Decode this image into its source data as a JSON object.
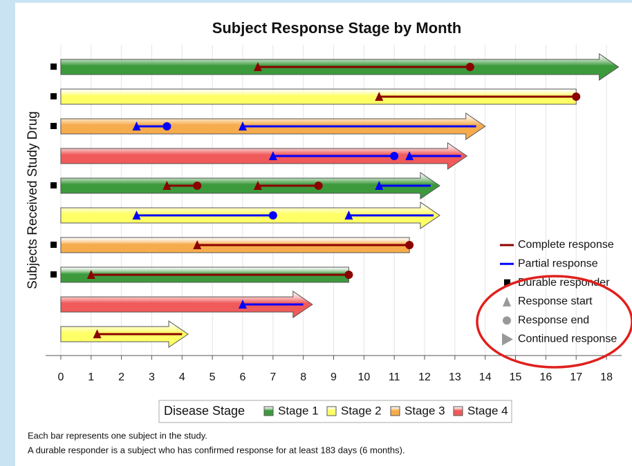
{
  "chart_data": {
    "type": "swimmer",
    "title": "Subject Response Stage by Month",
    "ylabel": "Subjects Received Study Drug",
    "xlim": [
      -0.5,
      18.5
    ],
    "xticks": [
      0,
      1,
      2,
      3,
      4,
      5,
      6,
      7,
      8,
      9,
      10,
      11,
      12,
      13,
      14,
      15,
      16,
      17,
      18
    ],
    "grid": true,
    "stage_legend_title": "Disease Stage",
    "stages": [
      {
        "name": "Stage 1",
        "color": "#3c9a3c"
      },
      {
        "name": "Stage 2",
        "color": "#ffff66"
      },
      {
        "name": "Stage 3",
        "color": "#f6ac4c"
      },
      {
        "name": "Stage 4",
        "color": "#f05a5a"
      }
    ],
    "response_colors": {
      "complete": "#8b0000",
      "partial": "#0000ff"
    },
    "legend_items": {
      "complete": "Complete response",
      "partial": "Partial response",
      "durable": "Durable responder",
      "start": "Response start",
      "end": "Response end",
      "continued": "Continued response"
    },
    "subjects": [
      {
        "stage": 0,
        "end": 18.4,
        "continued": true,
        "durable": true,
        "responses": [
          {
            "type": "complete",
            "start": 6.5,
            "end": 13.5,
            "end_marker": true
          }
        ]
      },
      {
        "stage": 1,
        "end": 17,
        "continued": false,
        "durable": true,
        "responses": [
          {
            "type": "complete",
            "start": 10.5,
            "end": 17,
            "end_marker": true
          }
        ]
      },
      {
        "stage": 2,
        "end": 14,
        "continued": true,
        "durable": true,
        "responses": [
          {
            "type": "partial",
            "start": 2.5,
            "end": 3.5,
            "end_marker": true
          },
          {
            "type": "partial",
            "start": 6,
            "end": 13.7,
            "end_marker": false
          }
        ]
      },
      {
        "stage": 3,
        "end": 13.4,
        "continued": true,
        "durable": false,
        "responses": [
          {
            "type": "partial",
            "start": 7,
            "end": 11,
            "end_marker": true
          },
          {
            "type": "partial",
            "start": 11.5,
            "end": 13.2,
            "end_marker": false
          }
        ]
      },
      {
        "stage": 0,
        "end": 12.5,
        "continued": true,
        "durable": true,
        "responses": [
          {
            "type": "complete",
            "start": 3.5,
            "end": 4.5,
            "end_marker": true
          },
          {
            "type": "complete",
            "start": 6.5,
            "end": 8.5,
            "end_marker": true
          },
          {
            "type": "partial",
            "start": 10.5,
            "end": 12.2,
            "end_marker": false
          }
        ]
      },
      {
        "stage": 1,
        "end": 12.5,
        "continued": true,
        "durable": false,
        "responses": [
          {
            "type": "partial",
            "start": 2.5,
            "end": 7,
            "end_marker": true
          },
          {
            "type": "partial",
            "start": 9.5,
            "end": 12.3,
            "end_marker": false
          }
        ]
      },
      {
        "stage": 2,
        "end": 11.5,
        "continued": false,
        "durable": true,
        "responses": [
          {
            "type": "complete",
            "start": 4.5,
            "end": 11.5,
            "end_marker": true
          }
        ]
      },
      {
        "stage": 0,
        "end": 9.5,
        "continued": false,
        "durable": true,
        "responses": [
          {
            "type": "complete",
            "start": 1,
            "end": 9.5,
            "end_marker": true
          }
        ]
      },
      {
        "stage": 3,
        "end": 8.3,
        "continued": true,
        "durable": false,
        "responses": [
          {
            "type": "partial",
            "start": 6,
            "end": 8,
            "end_marker": false
          }
        ]
      },
      {
        "stage": 1,
        "end": 4.2,
        "continued": true,
        "durable": false,
        "responses": [
          {
            "type": "complete",
            "start": 1.2,
            "end": 4,
            "end_marker": false
          }
        ]
      }
    ],
    "footnotes": [
      "Each bar represents one subject in the study.",
      "A durable responder is a subject who has confirmed response for at least 183 days (6 months)."
    ]
  }
}
